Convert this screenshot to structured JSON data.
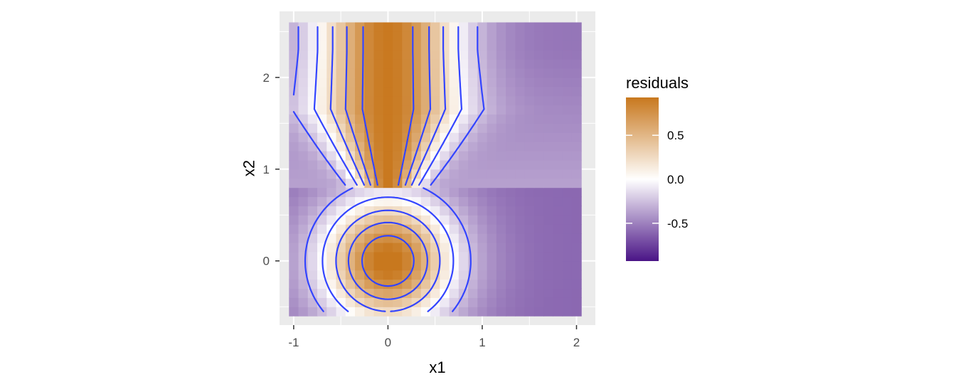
{
  "chart_data": {
    "type": "heatmap",
    "title": "",
    "xlabel": "x1",
    "ylabel": "x2",
    "xlim": [
      -1.15,
      2.2
    ],
    "ylim": [
      -0.7,
      2.72
    ],
    "x_ticks": [
      -1,
      0,
      1,
      2
    ],
    "x_tick_labels": [
      "-1",
      "0",
      "1",
      "2"
    ],
    "y_ticks": [
      0,
      1,
      2
    ],
    "y_tick_labels": [
      "0",
      "1",
      "2"
    ],
    "grid": true,
    "tiles": {
      "x_range": [
        -1.0,
        2.0
      ],
      "y_range": [
        -0.55,
        2.55
      ],
      "nx": 31,
      "ny": 32,
      "break_at_x2": 0.8
    },
    "contours": {
      "color": "#3344ff",
      "levels": [
        0.75,
        0.5,
        0.25,
        0.0,
        -0.25
      ]
    },
    "legend": {
      "title": "residuals",
      "placement": "right",
      "ticks": [
        0.5,
        0.0,
        -0.5
      ],
      "tick_labels": [
        "0.5",
        "0.0",
        "-0.5"
      ],
      "range": [
        -0.93,
        0.93
      ],
      "colors": {
        "high": "#c8781e",
        "mid": "#ffffff",
        "low": "#4a1486"
      }
    }
  }
}
